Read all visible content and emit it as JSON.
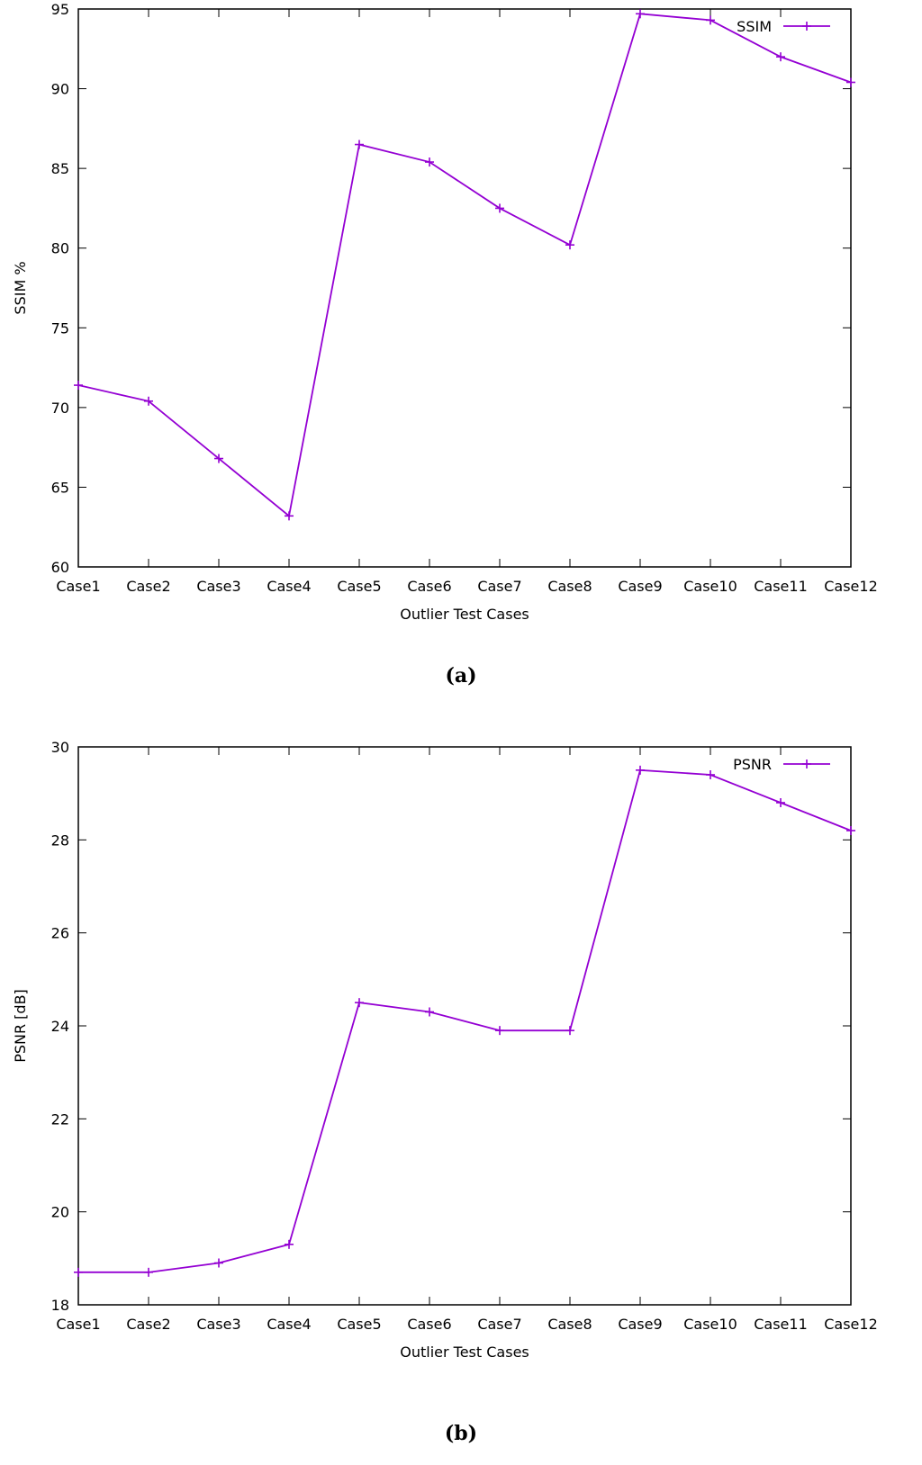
{
  "captions": [
    "(a)",
    "(b)"
  ],
  "chart_data": [
    {
      "type": "line",
      "categories": [
        "Case1",
        "Case2",
        "Case3",
        "Case4",
        "Case5",
        "Case6",
        "Case7",
        "Case8",
        "Case9",
        "Case10",
        "Case11",
        "Case12"
      ],
      "series": [
        {
          "name": "SSIM",
          "values": [
            71.4,
            70.4,
            66.8,
            63.2,
            86.5,
            85.4,
            82.5,
            80.2,
            94.7,
            94.3,
            92.0,
            90.4
          ]
        }
      ],
      "xlabel": "Outlier Test Cases",
      "ylabel": "SSIM %",
      "ylim": [
        60,
        95
      ],
      "yticks": [
        60,
        65,
        70,
        75,
        80,
        85,
        90,
        95
      ],
      "grid": false,
      "legend": "top-right",
      "color": "#9400d3"
    },
    {
      "type": "line",
      "categories": [
        "Case1",
        "Case2",
        "Case3",
        "Case4",
        "Case5",
        "Case6",
        "Case7",
        "Case8",
        "Case9",
        "Case10",
        "Case11",
        "Case12"
      ],
      "series": [
        {
          "name": "PSNR",
          "values": [
            18.7,
            18.7,
            18.9,
            19.3,
            24.5,
            24.3,
            23.9,
            23.9,
            29.5,
            29.4,
            28.8,
            28.2
          ]
        }
      ],
      "xlabel": "Outlier Test Cases",
      "ylabel": "PSNR [dB]",
      "ylim": [
        18,
        30
      ],
      "yticks": [
        18,
        20,
        22,
        24,
        26,
        28,
        30
      ],
      "grid": false,
      "legend": "top-right",
      "color": "#9400d3"
    }
  ]
}
